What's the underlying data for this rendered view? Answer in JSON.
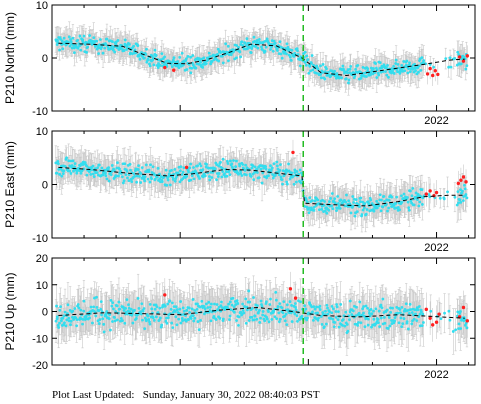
{
  "footer": {
    "label": "Plot Last Updated:",
    "value": "Sunday, January 30, 2022 08:40:03 PST"
  },
  "colors": {
    "point": "#33ddee",
    "recent_point": "#ff2020",
    "error_bar": "#c8c8c8",
    "trend": "#000000",
    "event_marker": "#22bb22"
  },
  "chart_data": [
    {
      "type": "scatter",
      "ylabel": "P210 North (mm)",
      "ylim": [
        -10,
        10
      ],
      "yticks": [
        -10,
        0,
        10
      ],
      "xlim": [
        2019.0,
        2022.3
      ],
      "xtick_labels": [
        {
          "x": 2022.0,
          "label": "2022"
        }
      ],
      "event_marker_x": 2020.96,
      "trend": [
        {
          "x": 2019.05,
          "y": 2.8
        },
        {
          "x": 2019.3,
          "y": 2.6
        },
        {
          "x": 2019.55,
          "y": 2.2
        },
        {
          "x": 2019.7,
          "y": 0.8
        },
        {
          "x": 2019.9,
          "y": -1.0
        },
        {
          "x": 2020.05,
          "y": -1.1
        },
        {
          "x": 2020.2,
          "y": -0.4
        },
        {
          "x": 2020.4,
          "y": 1.2
        },
        {
          "x": 2020.55,
          "y": 2.6
        },
        {
          "x": 2020.75,
          "y": 2.3
        },
        {
          "x": 2020.95,
          "y": 0.0
        },
        {
          "x": 2021.1,
          "y": -2.8
        },
        {
          "x": 2021.3,
          "y": -3.3
        },
        {
          "x": 2021.5,
          "y": -2.6
        },
        {
          "x": 2021.7,
          "y": -1.9
        },
        {
          "x": 2021.9,
          "y": -1.2
        },
        {
          "x": 2022.1,
          "y": -0.4
        },
        {
          "x": 2022.22,
          "y": -0.2
        }
      ],
      "recent": [
        {
          "x": 2021.93,
          "y": -3.0
        },
        {
          "x": 2021.95,
          "y": -2.0
        },
        {
          "x": 2021.97,
          "y": -3.3
        },
        {
          "x": 2021.99,
          "y": -2.4
        },
        {
          "x": 2022.01,
          "y": -3.1
        },
        {
          "x": 2022.18,
          "y": 0.2
        },
        {
          "x": 2022.21,
          "y": -0.6
        },
        {
          "x": 2022.24,
          "y": 0.4
        },
        {
          "x": 2019.88,
          "y": -1.8
        },
        {
          "x": 2019.95,
          "y": -2.3
        }
      ],
      "noise": 1.3,
      "error": 2.2
    },
    {
      "type": "scatter",
      "ylabel": "P210 East (mm)",
      "ylim": [
        -10,
        10
      ],
      "yticks": [
        -10,
        0,
        10
      ],
      "xlim": [
        2019.0,
        2022.3
      ],
      "xtick_labels": [
        {
          "x": 2022.0,
          "label": "2022"
        }
      ],
      "event_marker_x": 2020.96,
      "trend": [
        {
          "x": 2019.05,
          "y": 3.2
        },
        {
          "x": 2019.3,
          "y": 2.8
        },
        {
          "x": 2019.6,
          "y": 2.1
        },
        {
          "x": 2019.9,
          "y": 1.6
        },
        {
          "x": 2020.1,
          "y": 2.0
        },
        {
          "x": 2020.35,
          "y": 2.8
        },
        {
          "x": 2020.55,
          "y": 2.7
        },
        {
          "x": 2020.8,
          "y": 2.0
        },
        {
          "x": 2020.95,
          "y": 1.6
        },
        {
          "x": 2020.97,
          "y": -3.5
        },
        {
          "x": 2021.2,
          "y": -3.8
        },
        {
          "x": 2021.45,
          "y": -4.0
        },
        {
          "x": 2021.7,
          "y": -3.2
        },
        {
          "x": 2021.9,
          "y": -2.3
        },
        {
          "x": 2022.1,
          "y": -2.0
        },
        {
          "x": 2022.22,
          "y": -2.0
        }
      ],
      "recent": [
        {
          "x": 2021.92,
          "y": -1.8
        },
        {
          "x": 2021.95,
          "y": -1.2
        },
        {
          "x": 2021.98,
          "y": -2.1
        },
        {
          "x": 2022.0,
          "y": -1.5
        },
        {
          "x": 2022.17,
          "y": 0.2
        },
        {
          "x": 2022.19,
          "y": 0.8
        },
        {
          "x": 2022.21,
          "y": 1.4
        },
        {
          "x": 2022.23,
          "y": 0.5
        },
        {
          "x": 2020.88,
          "y": 6.0
        },
        {
          "x": 2020.05,
          "y": 3.2
        }
      ],
      "noise": 1.5,
      "error": 2.6
    },
    {
      "type": "scatter",
      "ylabel": "P210 Up (mm)",
      "ylim": [
        -20,
        20
      ],
      "yticks": [
        -20,
        -10,
        0,
        10,
        20
      ],
      "xlim": [
        2019.0,
        2022.3
      ],
      "xtick_labels": [
        {
          "x": 2022.0,
          "label": "2022"
        }
      ],
      "event_marker_x": 2020.96,
      "trend": [
        {
          "x": 2019.05,
          "y": -1.5
        },
        {
          "x": 2019.4,
          "y": -0.5
        },
        {
          "x": 2019.7,
          "y": -0.8
        },
        {
          "x": 2020.0,
          "y": -1.2
        },
        {
          "x": 2020.3,
          "y": 0.5
        },
        {
          "x": 2020.6,
          "y": 1.5
        },
        {
          "x": 2020.85,
          "y": 0.2
        },
        {
          "x": 2021.1,
          "y": -1.5
        },
        {
          "x": 2021.4,
          "y": -2.0
        },
        {
          "x": 2021.7,
          "y": -1.2
        },
        {
          "x": 2021.95,
          "y": -1.8
        },
        {
          "x": 2022.22,
          "y": -2.5
        }
      ],
      "recent": [
        {
          "x": 2021.92,
          "y": 0.8
        },
        {
          "x": 2021.95,
          "y": -2.5
        },
        {
          "x": 2021.97,
          "y": -5.0
        },
        {
          "x": 2022.0,
          "y": -4.0
        },
        {
          "x": 2022.02,
          "y": -1.0
        },
        {
          "x": 2022.18,
          "y": -2.0
        },
        {
          "x": 2022.21,
          "y": 1.5
        },
        {
          "x": 2022.24,
          "y": -3.5
        },
        {
          "x": 2019.88,
          "y": 6.2
        },
        {
          "x": 2020.9,
          "y": 5.0
        },
        {
          "x": 2020.86,
          "y": 8.5
        }
      ],
      "noise": 4.5,
      "error": 7.0
    }
  ]
}
